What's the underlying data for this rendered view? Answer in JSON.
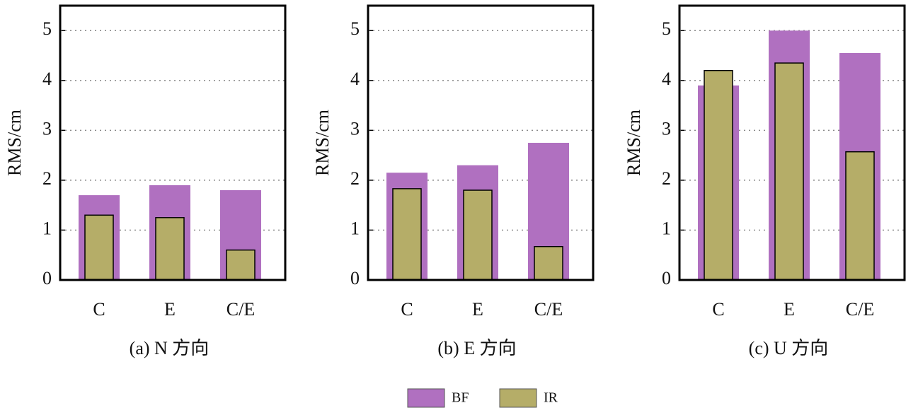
{
  "chart_data": [
    {
      "type": "bar",
      "title": "(a) N 方向",
      "y_label": "RMS/cm",
      "categories": [
        "C",
        "E",
        "C/E"
      ],
      "series": [
        {
          "name": "BF",
          "color": "#b070c0",
          "values": [
            1.7,
            1.9,
            1.8
          ]
        },
        {
          "name": "IR",
          "color": "#b5ad68",
          "values": [
            1.3,
            1.25,
            0.6
          ]
        }
      ],
      "ylim": [
        0,
        5.5
      ],
      "yticks": [
        0,
        1,
        2,
        3,
        4,
        5
      ],
      "grid": true
    },
    {
      "type": "bar",
      "title": "(b) E 方向",
      "y_label": "RMS/cm",
      "categories": [
        "C",
        "E",
        "C/E"
      ],
      "series": [
        {
          "name": "BF",
          "color": "#b070c0",
          "values": [
            2.15,
            2.3,
            2.75
          ]
        },
        {
          "name": "IR",
          "color": "#b5ad68",
          "values": [
            1.83,
            1.8,
            0.67
          ]
        }
      ],
      "ylim": [
        0,
        5.5
      ],
      "yticks": [
        0,
        1,
        2,
        3,
        4,
        5
      ],
      "grid": true
    },
    {
      "type": "bar",
      "title": "(c) U 方向",
      "y_label": "RMS/cm",
      "categories": [
        "C",
        "E",
        "C/E"
      ],
      "series": [
        {
          "name": "BF",
          "color": "#b070c0",
          "values": [
            3.9,
            5.0,
            4.55
          ]
        },
        {
          "name": "IR",
          "color": "#b5ad68",
          "values": [
            4.2,
            4.35,
            2.57
          ]
        }
      ],
      "ylim": [
        0,
        5.5
      ],
      "yticks": [
        0,
        1,
        2,
        3,
        4,
        5
      ],
      "grid": true
    }
  ]
}
